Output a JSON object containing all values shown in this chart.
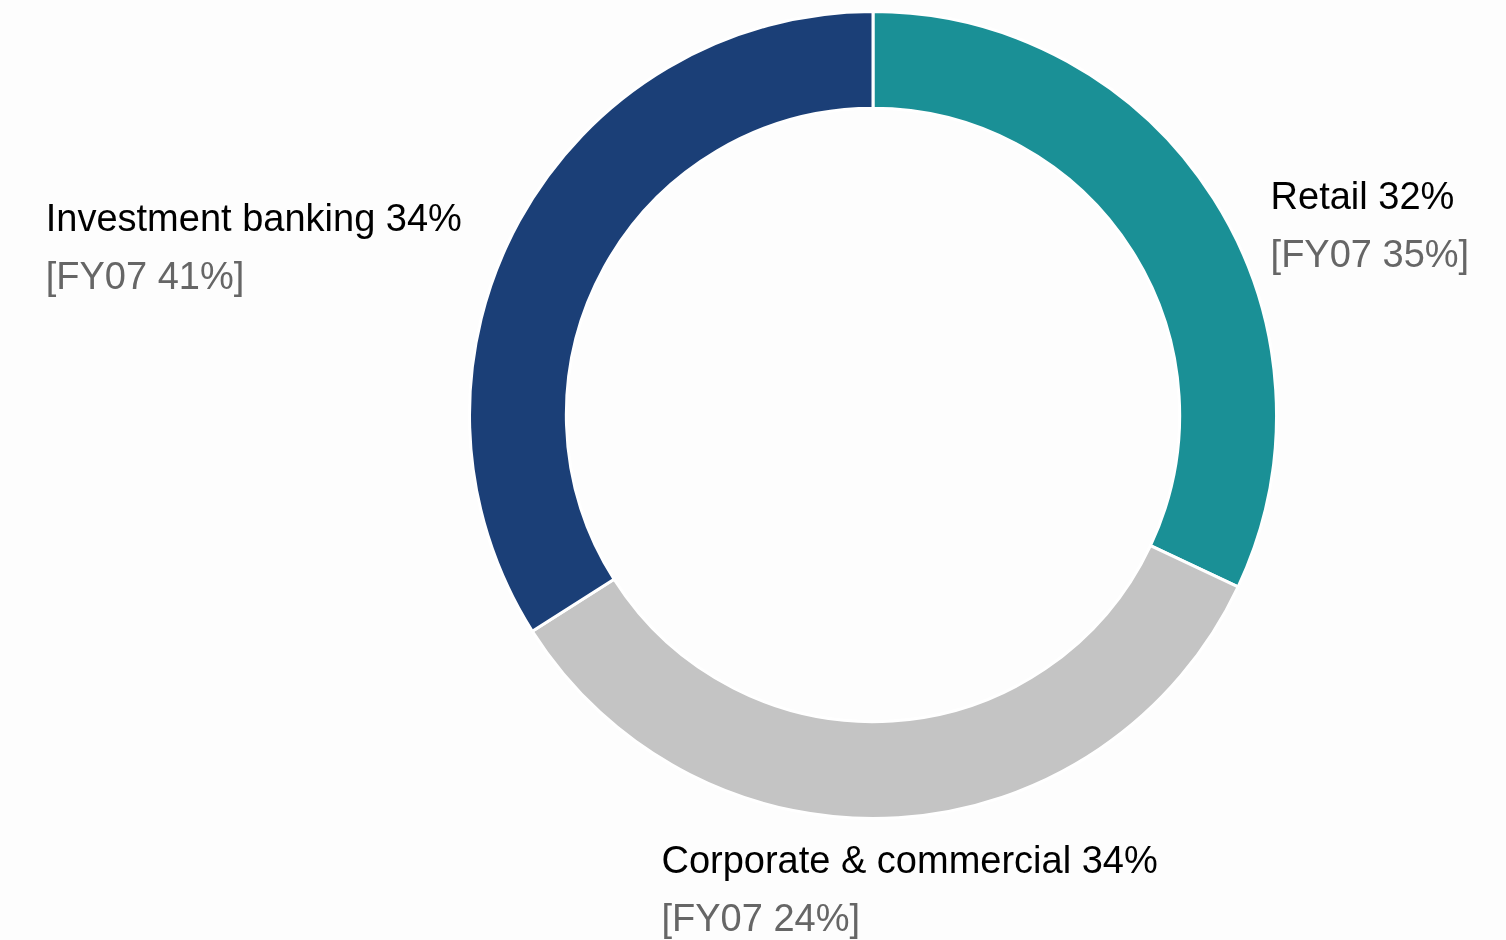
{
  "chart_data": {
    "type": "donut",
    "categories": [
      "Retail",
      "Corporate & commercial",
      "Investment banking"
    ],
    "values": [
      32,
      34,
      34
    ],
    "value_labels": [
      "32%",
      "34%",
      "34%"
    ],
    "colors": [
      "#1a9096",
      "#c4c4c4",
      "#1b3f77"
    ],
    "annotations": [
      "[FY07 35%]",
      "[FY07 24%]",
      "[FY07 41%]"
    ],
    "legend": false
  }
}
